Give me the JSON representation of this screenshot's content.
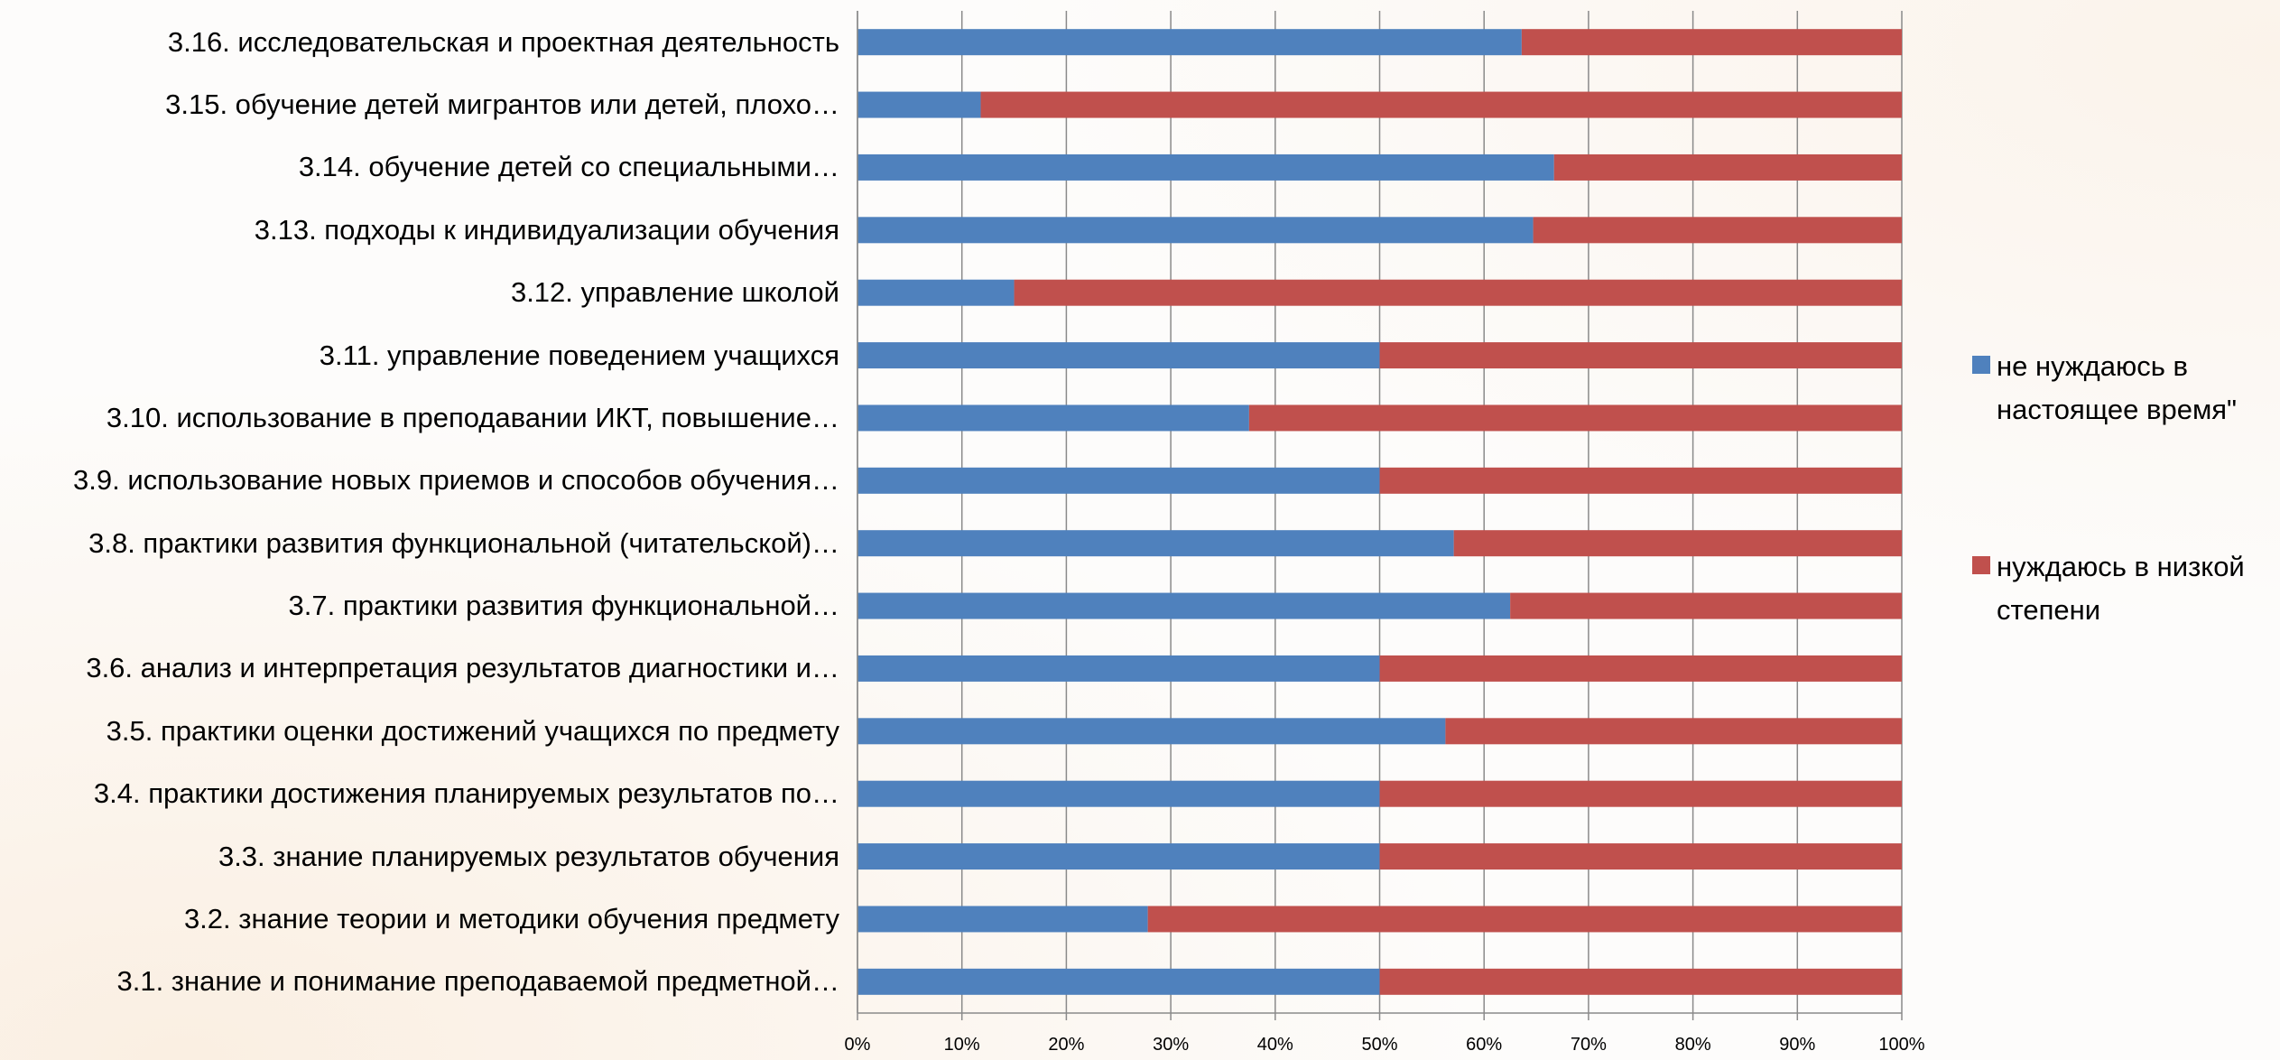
{
  "chart_data": {
    "type": "bar",
    "orientation": "horizontal",
    "stacked": "percent",
    "categories": [
      "3.16. исследовательская и проектная деятельность",
      "3.15. обучение детей мигрантов или детей,  плохо…",
      "3.14. обучение детей со специальными…",
      "3.13. подходы к индивидуализации обучения",
      "3.12. управление школой",
      "3.11. управление поведением учащихся",
      "3.10. использование в преподавании ИКТ, повышение…",
      "3.9. использование новых приемов и способов обучения…",
      "3.8. практики развития функциональной (читательской)…",
      "3.7. практики развития функциональной…",
      "3.6. анализ и интерпретация результатов диагностики и…",
      "3.5. практики оценки достижений учащихся по предмету",
      "3.4. практики достижения планируемых результатов по…",
      "3.3. знание планируемых результатов обучения",
      "3.2. знание теории и методики обучения предмету",
      "3.1. знание и понимание преподаваемой предметной…"
    ],
    "series": [
      {
        "name": "не нуждаюсь в настоящее время\"",
        "color": "#4F81BD",
        "values": [
          63.6,
          11.8,
          66.7,
          64.7,
          15.0,
          50.0,
          37.5,
          50.0,
          57.1,
          62.5,
          50.0,
          56.3,
          50.0,
          50.0,
          27.8,
          50.0
        ]
      },
      {
        "name": "нуждаюсь в низкой степени",
        "color": "#C0504D",
        "values": [
          36.4,
          88.2,
          33.3,
          35.3,
          85.0,
          50.0,
          62.5,
          50.0,
          42.9,
          37.5,
          50.0,
          43.7,
          50.0,
          50.0,
          72.2,
          50.0
        ]
      }
    ],
    "xlim": [
      0,
      100
    ],
    "xticks": [
      "0%",
      "10%",
      "20%",
      "30%",
      "40%",
      "50%",
      "60%",
      "70%",
      "80%",
      "90%",
      "100%"
    ],
    "grid": "vertical",
    "legend_position": "right"
  },
  "legend": {
    "items": [
      {
        "label": "не нуждаюсь в\nнастоящее время\"",
        "color": "#4F81BD"
      },
      {
        "label": "нуждаюсь в низкой\nстепени",
        "color": "#C0504D"
      }
    ]
  }
}
